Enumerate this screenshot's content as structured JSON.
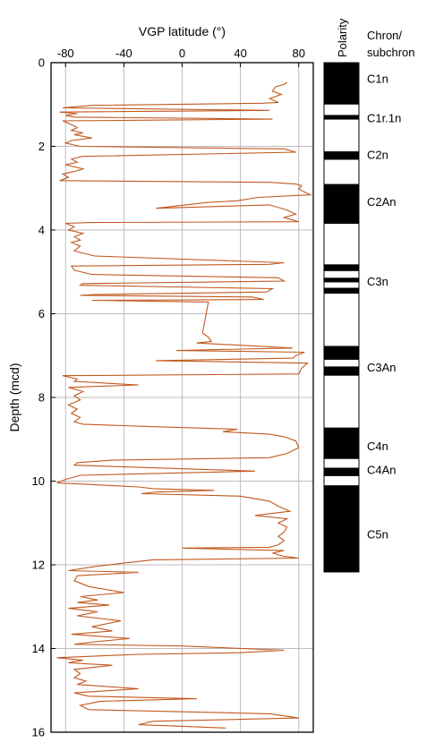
{
  "chart_data": {
    "type": "line",
    "title": "",
    "xlabel": "VGP latitude (°)",
    "ylabel": "Depth (mcd)",
    "xlim": [
      -90,
      90
    ],
    "ylim": [
      0,
      16
    ],
    "y_inverted": true,
    "xticks": [
      -80,
      -40,
      0,
      40,
      80
    ],
    "yticks": [
      0,
      2,
      4,
      6,
      8,
      10,
      12,
      14,
      16
    ],
    "grid": true,
    "line_color": "#c0581e",
    "series": [
      {
        "name": "",
        "points": [
          [
            72,
            0.47
          ],
          [
            70,
            0.52
          ],
          [
            64,
            0.58
          ],
          [
            62,
            0.68
          ],
          [
            68,
            0.76
          ],
          [
            60,
            0.86
          ],
          [
            66,
            0.95
          ],
          [
            55,
            0.97
          ],
          [
            -62,
            1.02
          ],
          [
            -82,
            1.08
          ],
          [
            60,
            1.14
          ],
          [
            -84,
            1.18
          ],
          [
            -72,
            1.22
          ],
          [
            -80,
            1.26
          ],
          [
            -74,
            1.3
          ],
          [
            62,
            1.35
          ],
          [
            -82,
            1.39
          ],
          [
            -78,
            1.45
          ],
          [
            -72,
            1.55
          ],
          [
            -76,
            1.62
          ],
          [
            -68,
            1.68
          ],
          [
            -74,
            1.72
          ],
          [
            -62,
            1.8
          ],
          [
            -76,
            1.86
          ],
          [
            -80,
            1.92
          ],
          [
            -70,
            2.0
          ],
          [
            70,
            2.06
          ],
          [
            78,
            2.14
          ],
          [
            -68,
            2.24
          ],
          [
            -76,
            2.3
          ],
          [
            -72,
            2.38
          ],
          [
            -80,
            2.44
          ],
          [
            -68,
            2.54
          ],
          [
            -74,
            2.6
          ],
          [
            -82,
            2.66
          ],
          [
            -78,
            2.74
          ],
          [
            -84,
            2.82
          ],
          [
            60,
            2.86
          ],
          [
            78,
            2.9
          ],
          [
            82,
            2.94
          ],
          [
            80,
            3.02
          ],
          [
            88,
            3.16
          ],
          [
            52,
            3.22
          ],
          [
            38,
            3.3
          ],
          [
            18,
            3.34
          ],
          [
            -18,
            3.48
          ],
          [
            60,
            3.4
          ],
          [
            72,
            3.52
          ],
          [
            78,
            3.62
          ],
          [
            70,
            3.7
          ],
          [
            80,
            3.8
          ],
          [
            -62,
            3.82
          ],
          [
            -80,
            3.84
          ],
          [
            -74,
            3.92
          ],
          [
            -78,
            4.0
          ],
          [
            -68,
            4.08
          ],
          [
            -74,
            4.16
          ],
          [
            -70,
            4.24
          ],
          [
            -76,
            4.3
          ],
          [
            -70,
            4.38
          ],
          [
            -74,
            4.5
          ],
          [
            -60,
            4.62
          ],
          [
            70,
            4.78
          ],
          [
            60,
            4.82
          ],
          [
            -76,
            4.86
          ],
          [
            -74,
            4.96
          ],
          [
            -62,
            5.06
          ],
          [
            66,
            5.14
          ],
          [
            70,
            5.22
          ],
          [
            -68,
            5.28
          ],
          [
            -70,
            5.32
          ],
          [
            62,
            5.4
          ],
          [
            58,
            5.48
          ],
          [
            -60,
            5.54
          ],
          [
            -70,
            5.56
          ],
          [
            48,
            5.6
          ],
          [
            56,
            5.66
          ],
          [
            -62,
            5.68
          ],
          [
            18,
            5.72
          ],
          [
            14,
            6.46
          ],
          [
            18,
            6.56
          ],
          [
            20,
            6.66
          ],
          [
            10,
            6.7
          ],
          [
            76,
            6.82
          ],
          [
            -4,
            6.88
          ],
          [
            84,
            6.92
          ],
          [
            78,
            7.0
          ],
          [
            76,
            7.06
          ],
          [
            -18,
            7.12
          ],
          [
            86,
            7.18
          ],
          [
            82,
            7.3
          ],
          [
            80,
            7.44
          ],
          [
            -82,
            7.48
          ],
          [
            -72,
            7.56
          ],
          [
            -74,
            7.62
          ],
          [
            -30,
            7.7
          ],
          [
            -78,
            7.76
          ],
          [
            -68,
            7.86
          ],
          [
            -74,
            7.96
          ],
          [
            -70,
            8.06
          ],
          [
            -78,
            8.18
          ],
          [
            -72,
            8.28
          ],
          [
            -76,
            8.38
          ],
          [
            -70,
            8.48
          ],
          [
            -74,
            8.58
          ],
          [
            -68,
            8.64
          ],
          [
            -20,
            8.7
          ],
          [
            38,
            8.76
          ],
          [
            28,
            8.82
          ],
          [
            60,
            8.88
          ],
          [
            70,
            8.94
          ],
          [
            78,
            9.04
          ],
          [
            80,
            9.2
          ],
          [
            72,
            9.34
          ],
          [
            60,
            9.44
          ],
          [
            -48,
            9.5
          ],
          [
            -72,
            9.56
          ],
          [
            -74,
            9.62
          ],
          [
            50,
            9.76
          ],
          [
            -70,
            9.86
          ],
          [
            -80,
            9.96
          ],
          [
            -86,
            10.04
          ],
          [
            -64,
            10.08
          ],
          [
            -30,
            10.14
          ],
          [
            -20,
            10.18
          ],
          [
            22,
            10.22
          ],
          [
            -18,
            10.26
          ],
          [
            -28,
            10.3
          ],
          [
            40,
            10.36
          ],
          [
            60,
            10.48
          ],
          [
            66,
            10.6
          ],
          [
            74,
            10.72
          ],
          [
            50,
            10.82
          ],
          [
            72,
            10.9
          ],
          [
            66,
            11.0
          ],
          [
            72,
            11.1
          ],
          [
            70,
            11.22
          ],
          [
            66,
            11.32
          ],
          [
            70,
            11.42
          ],
          [
            66,
            11.52
          ],
          [
            60,
            11.58
          ],
          [
            0,
            11.6
          ],
          [
            70,
            11.66
          ],
          [
            62,
            11.72
          ],
          [
            70,
            11.8
          ],
          [
            80,
            11.84
          ],
          [
            -20,
            11.88
          ],
          [
            -40,
            11.96
          ],
          [
            -60,
            12.04
          ],
          [
            -78,
            12.14
          ],
          [
            -30,
            12.18
          ],
          [
            -72,
            12.26
          ],
          [
            -74,
            12.38
          ],
          [
            -64,
            12.52
          ],
          [
            -40,
            12.66
          ],
          [
            -70,
            12.76
          ],
          [
            -58,
            12.84
          ],
          [
            -72,
            12.9
          ],
          [
            -50,
            12.96
          ],
          [
            -78,
            13.04
          ],
          [
            -58,
            13.12
          ],
          [
            -72,
            13.22
          ],
          [
            -42,
            13.34
          ],
          [
            -62,
            13.48
          ],
          [
            -48,
            13.58
          ],
          [
            -76,
            13.66
          ],
          [
            -36,
            13.76
          ],
          [
            -60,
            13.84
          ],
          [
            -74,
            13.9
          ],
          [
            0,
            13.94
          ],
          [
            70,
            14.04
          ],
          [
            40,
            14.1
          ],
          [
            -30,
            14.14
          ],
          [
            -86,
            14.22
          ],
          [
            -68,
            14.28
          ],
          [
            -78,
            14.34
          ],
          [
            -48,
            14.4
          ],
          [
            -74,
            14.5
          ],
          [
            -70,
            14.6
          ],
          [
            -74,
            14.7
          ],
          [
            -66,
            14.78
          ],
          [
            -72,
            14.86
          ],
          [
            -30,
            14.96
          ],
          [
            -74,
            15.06
          ],
          [
            -64,
            15.14
          ],
          [
            10,
            15.2
          ],
          [
            -56,
            15.26
          ],
          [
            -70,
            15.36
          ],
          [
            -64,
            15.46
          ],
          [
            60,
            15.56
          ],
          [
            80,
            15.66
          ],
          [
            -20,
            15.74
          ],
          [
            -30,
            15.82
          ],
          [
            30,
            15.9
          ]
        ]
      }
    ]
  },
  "polarity": {
    "header": "Polarity",
    "chron_header_line1": "Chron/",
    "chron_header_line2": "subchron",
    "normal_intervals": [
      [
        0.0,
        1.0
      ],
      [
        1.25,
        1.36
      ],
      [
        2.12,
        2.32
      ],
      [
        2.9,
        3.85
      ],
      [
        4.82,
        4.98
      ],
      [
        5.14,
        5.25
      ],
      [
        5.38,
        5.52
      ],
      [
        6.77,
        7.1
      ],
      [
        7.26,
        7.48
      ],
      [
        8.72,
        9.47
      ],
      [
        9.68,
        9.88
      ],
      [
        10.1,
        12.17
      ]
    ],
    "extent": [
      0,
      12.17
    ],
    "chrons": [
      {
        "label": "C1n",
        "depth": 0.38
      },
      {
        "label": "C1r.1n",
        "depth": 1.33
      },
      {
        "label": "C2n",
        "depth": 2.2
      },
      {
        "label": "C2An",
        "depth": 3.33
      },
      {
        "label": "C3n",
        "depth": 5.23
      },
      {
        "label": "C3An",
        "depth": 7.28
      },
      {
        "label": "C4n",
        "depth": 9.17
      },
      {
        "label": "C4An",
        "depth": 9.73
      },
      {
        "label": "C5n",
        "depth": 11.27
      }
    ]
  }
}
